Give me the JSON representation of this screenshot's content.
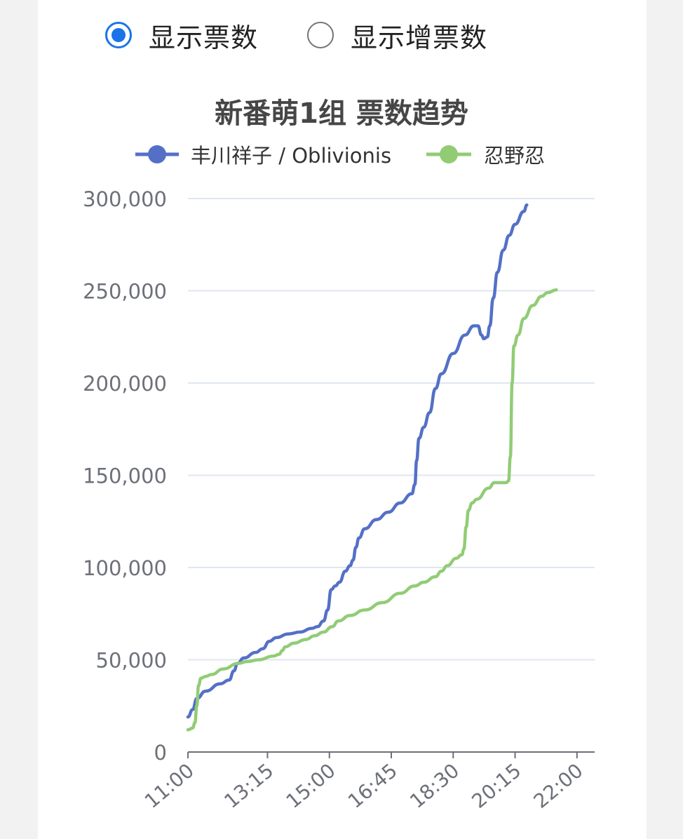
{
  "controls": {
    "options": [
      {
        "label": "显示票数",
        "checked": true
      },
      {
        "label": "显示增票数",
        "checked": false
      }
    ],
    "accent_color": "#1a73e8"
  },
  "chart_data": {
    "type": "line",
    "title": "新番萌1组 票数趋势",
    "legend_position": "top",
    "grid": true,
    "ylim": [
      0,
      300000
    ],
    "yticks": [
      0,
      50000,
      100000,
      150000,
      200000,
      250000,
      300000
    ],
    "ytick_labels": [
      "0",
      "50,000",
      "100,000",
      "150,000",
      "200,000",
      "250,000",
      "300,000"
    ],
    "xlim": [
      660,
      1350
    ],
    "xticks": [
      660,
      795,
      900,
      1005,
      1110,
      1215,
      1320
    ],
    "xtick_labels": [
      "11:00",
      "13:15",
      "15:00",
      "16:45",
      "18:30",
      "20:15",
      "22:00"
    ],
    "series": [
      {
        "name": "丰川祥子 / Oblivionis",
        "color": "#5470c6",
        "points": [
          [
            660,
            19000
          ],
          [
            668,
            23000
          ],
          [
            675,
            29000
          ],
          [
            690,
            33000
          ],
          [
            715,
            37000
          ],
          [
            730,
            39000
          ],
          [
            738,
            44000
          ],
          [
            744,
            48000
          ],
          [
            755,
            51000
          ],
          [
            775,
            54000
          ],
          [
            787,
            56000
          ],
          [
            798,
            60000
          ],
          [
            810,
            62000
          ],
          [
            830,
            64000
          ],
          [
            850,
            65000
          ],
          [
            870,
            67000
          ],
          [
            880,
            68000
          ],
          [
            890,
            71000
          ],
          [
            897,
            77000
          ],
          [
            903,
            88000
          ],
          [
            910,
            90000
          ],
          [
            917,
            92000
          ],
          [
            927,
            98000
          ],
          [
            935,
            101000
          ],
          [
            940,
            104000
          ],
          [
            945,
            111000
          ],
          [
            950,
            116000
          ],
          [
            960,
            121000
          ],
          [
            980,
            126000
          ],
          [
            1000,
            130000
          ],
          [
            1020,
            135000
          ],
          [
            1040,
            140000
          ],
          [
            1045,
            145000
          ],
          [
            1048,
            158000
          ],
          [
            1052,
            170000
          ],
          [
            1060,
            176000
          ],
          [
            1070,
            184000
          ],
          [
            1080,
            197000
          ],
          [
            1090,
            205000
          ],
          [
            1110,
            216000
          ],
          [
            1130,
            226000
          ],
          [
            1145,
            231000
          ],
          [
            1152,
            231000
          ],
          [
            1158,
            226000
          ],
          [
            1162,
            224000
          ],
          [
            1168,
            225000
          ],
          [
            1172,
            231000
          ],
          [
            1178,
            246000
          ],
          [
            1185,
            260000
          ],
          [
            1195,
            272000
          ],
          [
            1205,
            280000
          ],
          [
            1215,
            286000
          ],
          [
            1230,
            293000
          ],
          [
            1235,
            296500
          ]
        ]
      },
      {
        "name": "忍野忍",
        "color": "#91cc75",
        "points": [
          [
            660,
            12000
          ],
          [
            668,
            13000
          ],
          [
            672,
            16000
          ],
          [
            675,
            25000
          ],
          [
            678,
            36000
          ],
          [
            682,
            40000
          ],
          [
            690,
            41000
          ],
          [
            700,
            42000
          ],
          [
            720,
            45000
          ],
          [
            745,
            48000
          ],
          [
            760,
            49000
          ],
          [
            780,
            50000
          ],
          [
            805,
            52000
          ],
          [
            815,
            53000
          ],
          [
            820,
            55000
          ],
          [
            825,
            57000
          ],
          [
            840,
            59000
          ],
          [
            860,
            61000
          ],
          [
            875,
            63000
          ],
          [
            890,
            65000
          ],
          [
            905,
            68000
          ],
          [
            915,
            71000
          ],
          [
            935,
            74000
          ],
          [
            960,
            77000
          ],
          [
            990,
            81000
          ],
          [
            1020,
            86000
          ],
          [
            1045,
            90000
          ],
          [
            1060,
            92000
          ],
          [
            1080,
            95000
          ],
          [
            1090,
            98000
          ],
          [
            1100,
            101000
          ],
          [
            1115,
            105000
          ],
          [
            1125,
            107000
          ],
          [
            1128,
            110000
          ],
          [
            1132,
            122000
          ],
          [
            1136,
            131000
          ],
          [
            1142,
            135000
          ],
          [
            1150,
            137000
          ],
          [
            1170,
            143000
          ],
          [
            1180,
            146000
          ],
          [
            1200,
            146000
          ],
          [
            1204,
            147000
          ],
          [
            1207,
            160000
          ],
          [
            1210,
            200000
          ],
          [
            1213,
            220000
          ],
          [
            1220,
            226000
          ],
          [
            1230,
            235000
          ],
          [
            1245,
            242000
          ],
          [
            1260,
            247000
          ],
          [
            1270,
            249000
          ],
          [
            1285,
            250500
          ]
        ]
      }
    ]
  }
}
